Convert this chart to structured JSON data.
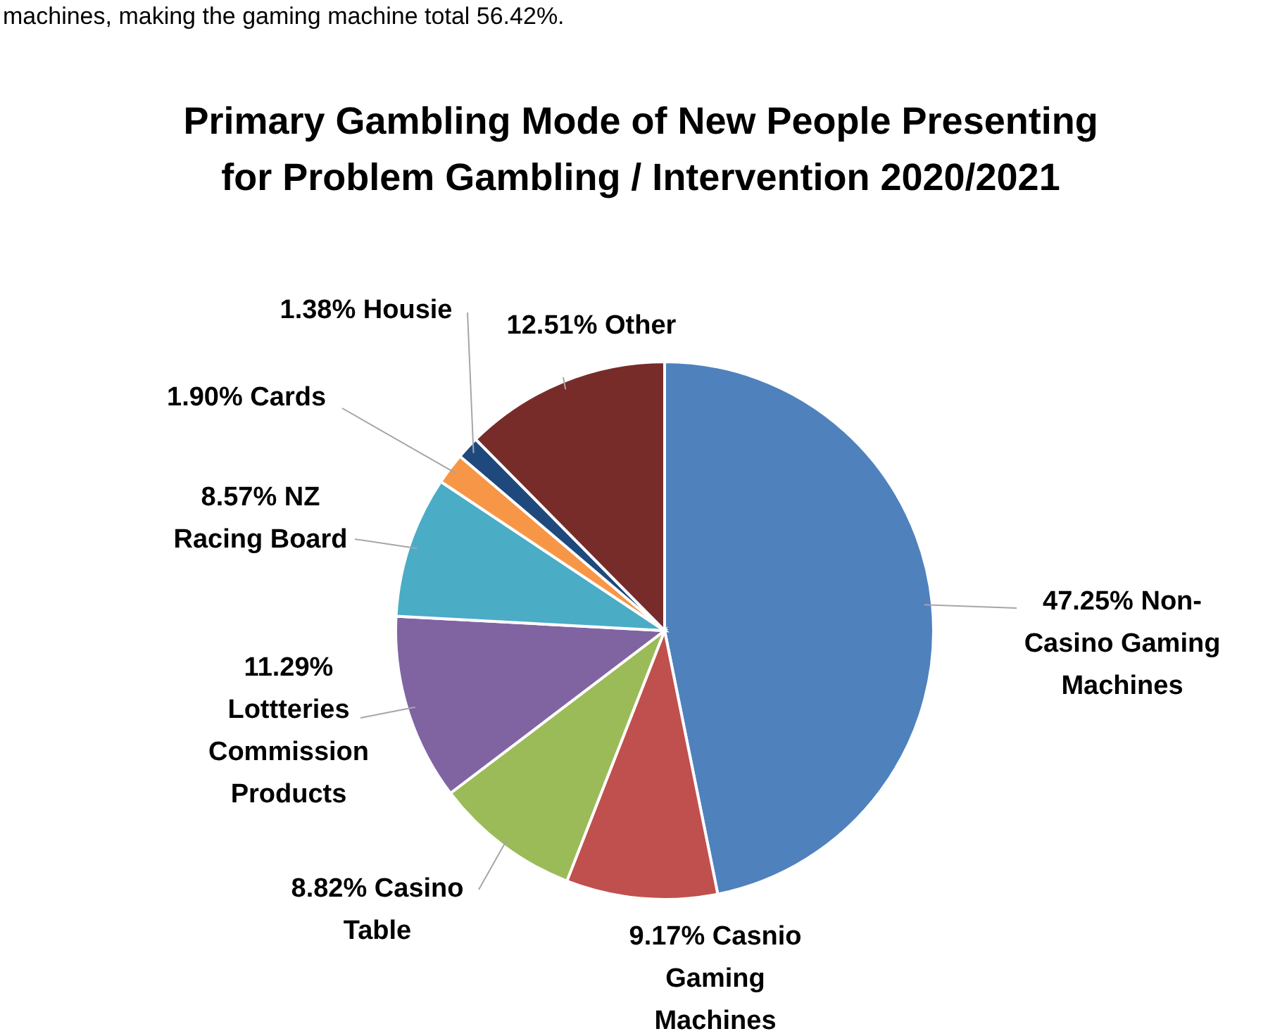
{
  "chart_data": {
    "type": "pie",
    "title": "Primary Gambling Mode of New People Presenting for Problem Gambling / Intervention 2020/2021",
    "annotations": [
      "machines, making the gaming machine total 56.42%."
    ],
    "categories": [
      "Non-Casino Gaming Machines",
      "Casnio Gaming Machines",
      "Casino Table",
      "Lottteries Commission Products",
      "NZ Racing Board",
      "Cards",
      "Housie",
      "Other"
    ],
    "values": [
      47.25,
      9.17,
      8.82,
      11.29,
      8.57,
      1.9,
      1.38,
      12.51
    ],
    "value_labels": [
      "47.25%",
      "9.17%",
      "8.82%",
      "11.29%",
      "8.57%",
      "1.90%",
      "1.38%",
      "12.51%"
    ],
    "colors": [
      "#4f81bd",
      "#c0504d",
      "#9bbb59",
      "#8064a2",
      "#4bacc6",
      "#f79646",
      "#1f497d",
      "#772c2a"
    ]
  }
}
